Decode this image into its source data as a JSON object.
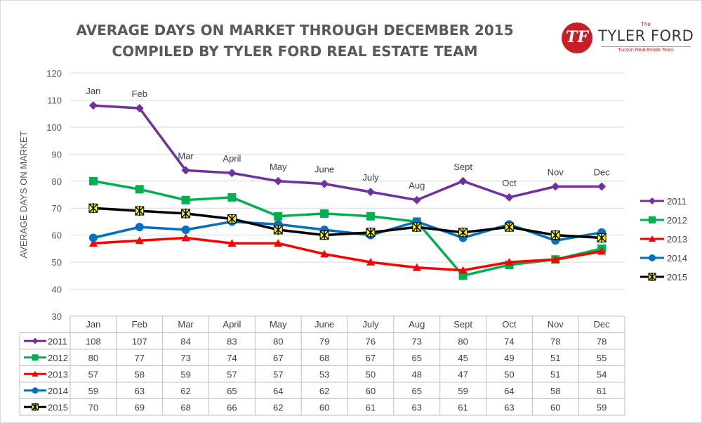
{
  "title_line1": "AVERAGE DAYS ON MARKET THROUGH DECEMBER 2015",
  "title_line2": "COMPILED BY TYLER FORD REAL ESTATE TEAM",
  "logo": {
    "the": "The",
    "name": "TYLER FORD",
    "tagline": "Tucson Real Estate Team",
    "letters": "TF"
  },
  "chart_data": {
    "type": "line",
    "title": "AVERAGE DAYS ON MARKET THROUGH DECEMBER 2015",
    "subtitle": "COMPILED BY TYLER FORD REAL ESTATE TEAM",
    "ylabel": "AVERAGE DAYS ON MARKET",
    "ylim": [
      30,
      120
    ],
    "yticks": [
      30,
      40,
      50,
      60,
      70,
      80,
      90,
      100,
      110,
      120
    ],
    "grid": true,
    "legend_position": "right",
    "data_table": true,
    "categories": [
      "Jan",
      "Feb",
      "Mar",
      "April",
      "May",
      "June",
      "July",
      "Aug",
      "Sept",
      "Oct",
      "Nov",
      "Dec"
    ],
    "table_categories": [
      "Jan",
      "Feb",
      "Mar",
      "April",
      "May",
      "June",
      "July",
      "Aug",
      "Sept",
      "Oct",
      "Nov",
      "Dec"
    ],
    "month_labels_on_2011": [
      "Jan",
      "Feb",
      "Mar",
      "April",
      "May",
      "June",
      "July",
      "Aug",
      "Sept",
      "Oct",
      "Nov",
      "Dec"
    ],
    "series": [
      {
        "name": "2011",
        "color": "#7030a0",
        "marker": "diamond",
        "values": [
          108,
          107,
          84,
          83,
          80,
          79,
          76,
          73,
          80,
          74,
          78,
          78
        ]
      },
      {
        "name": "2012",
        "color": "#00b050",
        "marker": "square",
        "values": [
          80,
          77,
          73,
          74,
          67,
          68,
          67,
          65,
          45,
          49,
          51,
          55
        ]
      },
      {
        "name": "2013",
        "color": "#ff0000",
        "marker": "triangle",
        "values": [
          57,
          58,
          59,
          57,
          57,
          53,
          50,
          48,
          47,
          50,
          51,
          54
        ]
      },
      {
        "name": "2014",
        "color": "#0070c0",
        "marker": "circle",
        "values": [
          59,
          63,
          62,
          65,
          64,
          62,
          60,
          65,
          59,
          64,
          58,
          61
        ]
      },
      {
        "name": "2015",
        "color": "#000000",
        "marker": "star",
        "marker_fill": "#ffff00",
        "values": [
          70,
          69,
          68,
          66,
          62,
          60,
          61,
          63,
          61,
          63,
          60,
          59
        ]
      }
    ]
  }
}
